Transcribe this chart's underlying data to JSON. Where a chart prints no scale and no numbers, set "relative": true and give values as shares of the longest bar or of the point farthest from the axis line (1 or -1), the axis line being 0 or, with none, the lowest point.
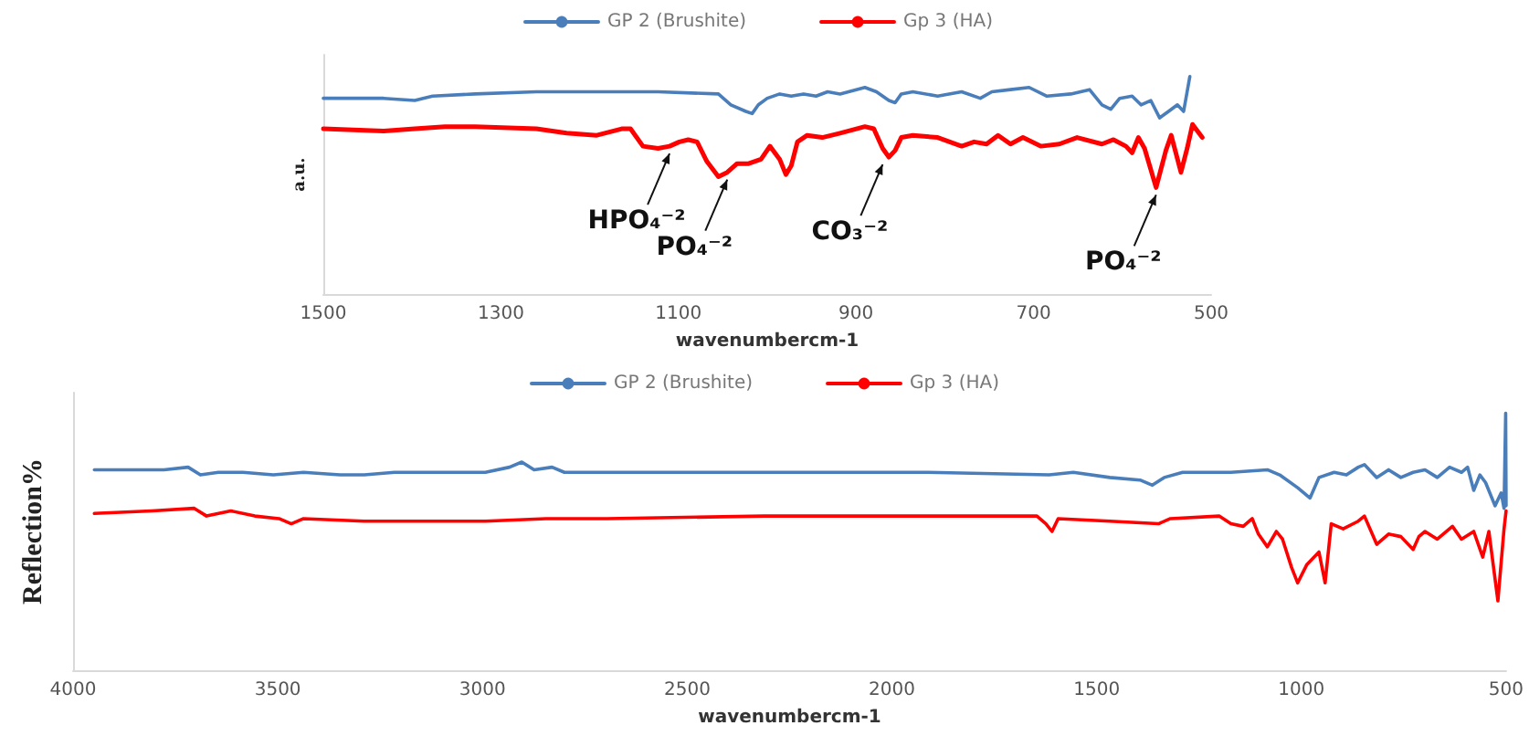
{
  "chart_data": [
    {
      "type": "line",
      "relative": true,
      "xlabel": "wavenumbercm-1",
      "ylabel": "a.u.",
      "xlim": [
        1500,
        500
      ],
      "xticks": [
        1500,
        1300,
        1100,
        900,
        700,
        500
      ],
      "grid": false,
      "legend": "top",
      "marker": "none",
      "line_style": "solid",
      "annotations": [
        {
          "text": "HPO₄⁻²",
          "x": 1110,
          "y": 0.68
        },
        {
          "text": "PO₄⁻²",
          "x": 1045,
          "y": 0.56
        },
        {
          "text": "CO₃⁻²",
          "x": 870,
          "y": 0.63
        },
        {
          "text": "PO₄⁻²",
          "x": 562,
          "y": 0.49
        }
      ],
      "series": [
        {
          "name": "GP 2 (Brushite)",
          "color": "#4a7ebb",
          "x": [
            1500,
            1466,
            1432,
            1397,
            1377,
            1329,
            1260,
            1192,
            1123,
            1055,
            1041,
            1024,
            1017,
            1010,
            1000,
            986,
            973,
            959,
            945,
            932,
            918,
            890,
            877,
            863,
            856,
            849,
            836,
            808,
            781,
            760,
            747,
            726,
            705,
            685,
            658,
            637,
            623,
            613,
            603,
            589,
            579,
            568,
            558,
            548,
            538,
            531,
            524
          ],
          "values": [
            0.9,
            0.9,
            0.9,
            0.89,
            0.91,
            0.92,
            0.93,
            0.93,
            0.93,
            0.92,
            0.87,
            0.84,
            0.83,
            0.87,
            0.9,
            0.92,
            0.91,
            0.92,
            0.91,
            0.93,
            0.92,
            0.95,
            0.93,
            0.89,
            0.88,
            0.92,
            0.93,
            0.91,
            0.93,
            0.9,
            0.93,
            0.94,
            0.95,
            0.91,
            0.92,
            0.94,
            0.87,
            0.85,
            0.9,
            0.91,
            0.87,
            0.89,
            0.81,
            0.84,
            0.87,
            0.84,
            1.0
          ]
        },
        {
          "name": "Gp 3 (HA)",
          "color": "#ff0000",
          "x": [
            1500,
            1432,
            1397,
            1363,
            1329,
            1260,
            1226,
            1192,
            1164,
            1154,
            1140,
            1123,
            1110,
            1099,
            1089,
            1079,
            1068,
            1055,
            1045,
            1034,
            1021,
            1007,
            997,
            986,
            979,
            973,
            966,
            955,
            938,
            918,
            890,
            880,
            870,
            863,
            856,
            849,
            836,
            808,
            781,
            767,
            753,
            740,
            726,
            712,
            692,
            671,
            651,
            623,
            610,
            596,
            589,
            582,
            575,
            562,
            551,
            545,
            534,
            527,
            521,
            510
          ],
          "values": [
            0.76,
            0.75,
            0.76,
            0.77,
            0.77,
            0.76,
            0.74,
            0.73,
            0.76,
            0.76,
            0.68,
            0.67,
            0.68,
            0.7,
            0.71,
            0.7,
            0.61,
            0.54,
            0.56,
            0.6,
            0.6,
            0.62,
            0.68,
            0.62,
            0.55,
            0.59,
            0.7,
            0.73,
            0.72,
            0.74,
            0.77,
            0.76,
            0.67,
            0.63,
            0.66,
            0.72,
            0.73,
            0.72,
            0.68,
            0.7,
            0.69,
            0.73,
            0.69,
            0.72,
            0.68,
            0.69,
            0.72,
            0.69,
            0.71,
            0.68,
            0.65,
            0.72,
            0.67,
            0.49,
            0.66,
            0.73,
            0.56,
            0.67,
            0.78,
            0.72
          ]
        }
      ]
    },
    {
      "type": "line",
      "relative": true,
      "xlabel": "wavenumbercm-1",
      "ylabel": "Reflection%",
      "xlim": [
        4000,
        500
      ],
      "xticks": [
        4000,
        3500,
        3000,
        2500,
        2000,
        1500,
        1000,
        500
      ],
      "grid": false,
      "legend": "top",
      "marker": "none",
      "line_style": "solid",
      "series": [
        {
          "name": "GP 2 (Brushite)",
          "color": "#4a7ebb",
          "x": [
            3948,
            3881,
            3778,
            3719,
            3689,
            3645,
            3615,
            3585,
            3511,
            3437,
            3348,
            3289,
            3215,
            2993,
            2934,
            2904,
            2874,
            2830,
            2800,
            2697,
            2312,
            1912,
            1616,
            1557,
            1468,
            1394,
            1364,
            1335,
            1290,
            1172,
            1083,
            1053,
            1009,
            979,
            957,
            920,
            890,
            861,
            846,
            816,
            787,
            757,
            727,
            698,
            668,
            638,
            609,
            594,
            579,
            564,
            550,
            527,
            512,
            505,
            501,
            500
          ],
          "values": [
            0.78,
            0.78,
            0.78,
            0.79,
            0.76,
            0.77,
            0.77,
            0.77,
            0.76,
            0.77,
            0.76,
            0.76,
            0.77,
            0.77,
            0.79,
            0.81,
            0.78,
            0.79,
            0.77,
            0.77,
            0.77,
            0.77,
            0.76,
            0.77,
            0.75,
            0.74,
            0.72,
            0.75,
            0.77,
            0.77,
            0.78,
            0.76,
            0.71,
            0.67,
            0.75,
            0.77,
            0.76,
            0.79,
            0.8,
            0.75,
            0.78,
            0.75,
            0.77,
            0.78,
            0.75,
            0.79,
            0.77,
            0.79,
            0.7,
            0.76,
            0.73,
            0.64,
            0.69,
            0.63,
            1.0,
            0.64
          ]
        },
        {
          "name": "Gp 3 (HA)",
          "color": "#ff0000",
          "x": [
            3948,
            3808,
            3704,
            3674,
            3615,
            3556,
            3497,
            3467,
            3437,
            3289,
            3141,
            2993,
            2845,
            2697,
            2312,
            1912,
            1646,
            1624,
            1609,
            1594,
            1468,
            1349,
            1320,
            1201,
            1172,
            1142,
            1120,
            1105,
            1083,
            1061,
            1046,
            1024,
            1009,
            987,
            957,
            942,
            927,
            898,
            861,
            846,
            816,
            787,
            757,
            727,
            713,
            698,
            668,
            631,
            609,
            579,
            557,
            542,
            520,
            505,
            500
          ],
          "values": [
            0.61,
            0.62,
            0.63,
            0.6,
            0.62,
            0.6,
            0.59,
            0.57,
            0.59,
            0.58,
            0.58,
            0.58,
            0.59,
            0.59,
            0.6,
            0.6,
            0.6,
            0.57,
            0.54,
            0.59,
            0.58,
            0.57,
            0.59,
            0.6,
            0.57,
            0.56,
            0.59,
            0.53,
            0.48,
            0.54,
            0.51,
            0.4,
            0.34,
            0.41,
            0.46,
            0.34,
            0.57,
            0.55,
            0.58,
            0.6,
            0.49,
            0.53,
            0.52,
            0.47,
            0.52,
            0.54,
            0.51,
            0.56,
            0.51,
            0.54,
            0.44,
            0.54,
            0.27,
            0.55,
            0.62
          ]
        }
      ]
    }
  ]
}
